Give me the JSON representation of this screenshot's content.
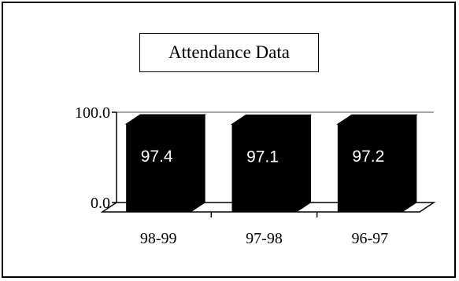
{
  "chart_data": {
    "type": "bar",
    "title": "Attendance Data",
    "categories": [
      "98-99",
      "97-98",
      "96-97"
    ],
    "values": [
      97.4,
      97.1,
      97.2
    ],
    "value_labels": [
      "97.4",
      "97.1",
      "97.2"
    ],
    "y_tick_labels": [
      "0.0",
      "100.0"
    ],
    "ylim": [
      0,
      100
    ],
    "xlabel": "",
    "ylabel": "",
    "style": "3d-column",
    "bar_color": "#000000",
    "value_label_color": "#ffffff",
    "gridline_color": "#888888",
    "grid": true,
    "legend": "none"
  }
}
